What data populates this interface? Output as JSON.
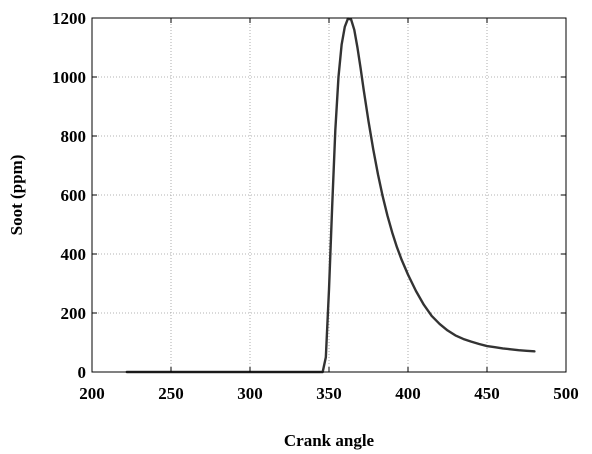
{
  "chart_data": {
    "type": "line",
    "title": "",
    "xlabel": "Crank angle",
    "ylabel": "Soot (ppm)",
    "xlim": [
      200,
      500
    ],
    "ylim": [
      0,
      1200
    ],
    "xticks": [
      200,
      250,
      300,
      350,
      400,
      450,
      500
    ],
    "yticks": [
      0,
      200,
      400,
      600,
      800,
      1000,
      1200
    ],
    "grid": true,
    "line_color": "#333333",
    "series": [
      {
        "x": [
          222,
          300,
          346,
          348,
          350,
          352,
          354,
          356,
          358,
          360,
          362,
          364,
          366,
          368,
          370,
          372,
          375,
          378,
          381,
          384,
          387,
          390,
          393,
          396,
          400,
          405,
          410,
          415,
          420,
          425,
          430,
          435,
          440,
          445,
          450,
          455,
          460,
          465,
          470,
          475,
          480
        ],
        "y": [
          0,
          0,
          0,
          50,
          280,
          560,
          820,
          1000,
          1110,
          1170,
          1198,
          1195,
          1160,
          1100,
          1030,
          955,
          850,
          755,
          670,
          595,
          530,
          473,
          423,
          380,
          330,
          275,
          228,
          190,
          163,
          141,
          124,
          112,
          103,
          95,
          88,
          84,
          80,
          77,
          74,
          72,
          70
        ]
      }
    ]
  }
}
